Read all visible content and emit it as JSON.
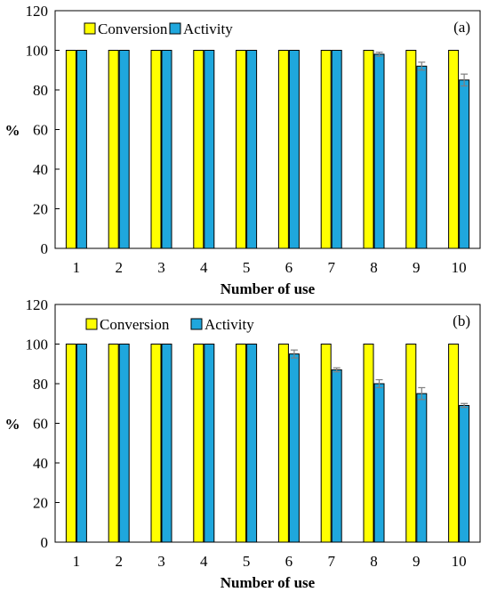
{
  "colors": {
    "conversion": "#ffff00",
    "activity": "#1fa7dd",
    "bar_stroke": "#000000",
    "error_bar": "#7f7f7f"
  },
  "chart_data": [
    {
      "type": "bar",
      "panel_label": "(a)",
      "xlabel": "Number of use",
      "ylabel": "%",
      "ylim": [
        0,
        120
      ],
      "yticks": [
        0,
        20,
        40,
        60,
        80,
        100,
        120
      ],
      "categories": [
        "1",
        "2",
        "3",
        "4",
        "5",
        "6",
        "7",
        "8",
        "9",
        "10"
      ],
      "grid": false,
      "legend": "top-left",
      "series": [
        {
          "name": "Conversion",
          "color": "#ffff00",
          "values": [
            100,
            100,
            100,
            100,
            100,
            100,
            100,
            100,
            100,
            100
          ],
          "errors": [
            0,
            0,
            0,
            0,
            0,
            0,
            0,
            0,
            0,
            0
          ]
        },
        {
          "name": "Activity",
          "color": "#1fa7dd",
          "values": [
            100,
            100,
            100,
            100,
            100,
            100,
            100,
            98,
            92,
            85
          ],
          "errors": [
            0,
            0,
            0,
            0,
            0,
            0,
            0,
            1,
            2,
            3
          ]
        }
      ]
    },
    {
      "type": "bar",
      "panel_label": "(b)",
      "xlabel": "Number of use",
      "ylabel": "%",
      "ylim": [
        0,
        120
      ],
      "yticks": [
        0,
        20,
        40,
        60,
        80,
        100,
        120
      ],
      "categories": [
        "1",
        "2",
        "3",
        "4",
        "5",
        "6",
        "7",
        "8",
        "9",
        "10"
      ],
      "grid": false,
      "legend": "top-left",
      "series": [
        {
          "name": "Conversion",
          "color": "#ffff00",
          "values": [
            100,
            100,
            100,
            100,
            100,
            100,
            100,
            100,
            100,
            100
          ],
          "errors": [
            0,
            0,
            0,
            0,
            0,
            0,
            0,
            0,
            0,
            0
          ]
        },
        {
          "name": "Activity",
          "color": "#1fa7dd",
          "values": [
            100,
            100,
            100,
            100,
            100,
            95,
            87,
            80,
            75,
            69
          ],
          "errors": [
            0,
            0,
            0,
            0,
            0,
            2,
            1,
            2,
            3,
            1
          ]
        }
      ]
    }
  ]
}
